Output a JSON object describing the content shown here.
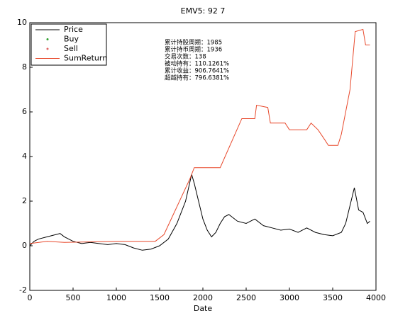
{
  "chart_data": {
    "type": "line",
    "title": "EMV5:  92   7",
    "xlabel": "Date",
    "xlim": [
      0,
      4000
    ],
    "xticks": [
      0,
      500,
      1000,
      1500,
      2000,
      2500,
      3000,
      3500,
      4000
    ],
    "ylim": [
      -2,
      10
    ],
    "yticks": [
      -2,
      0,
      2,
      4,
      6,
      8,
      10
    ],
    "grid": false,
    "legend": "upper left",
    "annotations": [
      "累计持股周期：1985",
      "累计持币周期：1936",
      "交易次数：138",
      "被动持有：110.1261%",
      "累计收益：906.7641%",
      "超越持有：796.6381%"
    ],
    "series": [
      {
        "name": "Price",
        "color": "#000000",
        "style": "line",
        "x": [
          0,
          50,
          100,
          200,
          300,
          350,
          400,
          500,
          600,
          700,
          800,
          900,
          1000,
          1100,
          1200,
          1300,
          1400,
          1500,
          1600,
          1700,
          1800,
          1870,
          1900,
          1950,
          2000,
          2050,
          2100,
          2150,
          2200,
          2250,
          2300,
          2400,
          2500,
          2600,
          2700,
          2800,
          2900,
          3000,
          3100,
          3200,
          3300,
          3400,
          3500,
          3600,
          3650,
          3700,
          3750,
          3800,
          3850,
          3900,
          3930
        ],
        "values": [
          0,
          0.2,
          0.3,
          0.4,
          0.5,
          0.55,
          0.4,
          0.2,
          0.1,
          0.15,
          0.1,
          0.05,
          0.1,
          0.05,
          -0.1,
          -0.2,
          -0.15,
          0,
          0.3,
          1,
          2,
          3.2,
          2.8,
          2,
          1.2,
          0.7,
          0.4,
          0.6,
          1,
          1.3,
          1.4,
          1.1,
          1,
          1.2,
          0.9,
          0.8,
          0.7,
          0.75,
          0.6,
          0.8,
          0.6,
          0.5,
          0.45,
          0.6,
          1,
          1.8,
          2.6,
          1.6,
          1.5,
          1,
          1.1
        ]
      },
      {
        "name": "Buy",
        "color": "#2ca02c",
        "style": "marker"
      },
      {
        "name": "Sell",
        "color": "#e06666",
        "style": "marker"
      },
      {
        "name": "SumReturn",
        "color": "#e8492c",
        "style": "line",
        "x": [
          0,
          200,
          400,
          1000,
          1450,
          1550,
          1850,
          1900,
          2200,
          2450,
          2600,
          2620,
          2750,
          2780,
          2950,
          3000,
          3200,
          3250,
          3330,
          3400,
          3450,
          3560,
          3600,
          3700,
          3760,
          3850,
          3880,
          3930
        ],
        "values": [
          0.1,
          0.2,
          0.15,
          0.2,
          0.2,
          0.5,
          3,
          3.5,
          3.5,
          5.7,
          5.7,
          6.3,
          6.2,
          5.5,
          5.5,
          5.2,
          5.2,
          5.5,
          5.2,
          4.8,
          4.5,
          4.5,
          5,
          7,
          9.6,
          9.7,
          9,
          9
        ]
      }
    ]
  }
}
